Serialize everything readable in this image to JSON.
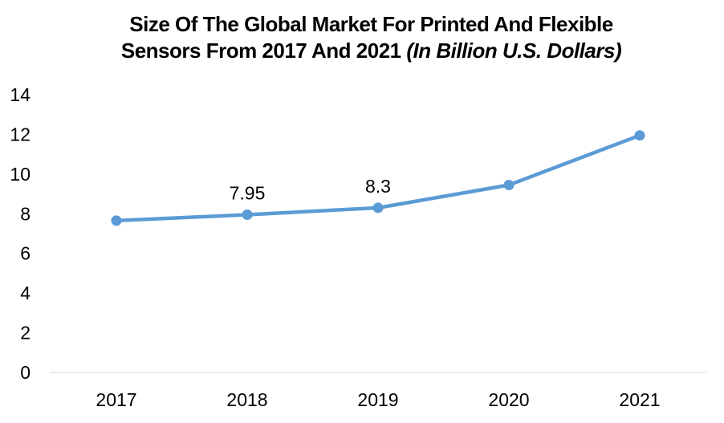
{
  "title": {
    "line1": "Size Of The Global Market For Printed And Flexible",
    "line2_main": "Sensors From 2017 And 2021 ",
    "line2_italic": "(In Billion U.S. Dollars)"
  },
  "chart_data": {
    "type": "line",
    "title": "Size Of The Global Market For Printed And Flexible Sensors From 2017 And 2021 (In Billion U.S. Dollars)",
    "categories": [
      "2017",
      "2018",
      "2019",
      "2020",
      "2021"
    ],
    "values": [
      7.65,
      7.95,
      8.3,
      9.45,
      11.95
    ],
    "point_labels": [
      "",
      "7.95",
      "8.3",
      "",
      ""
    ],
    "xlabel": "",
    "ylabel": "",
    "ylim": [
      0,
      14
    ],
    "yticks": [
      0,
      2,
      4,
      6,
      8,
      10,
      12,
      14
    ],
    "ytick_labels": [
      "0",
      "2",
      "4",
      "6",
      "8",
      "10",
      "12",
      "14"
    ],
    "grid": false,
    "legend": "none",
    "line_color": "#5B9BD5",
    "marker_color": "#5B9BD5",
    "axis_line_color": "#D9D9D9",
    "text_color": "#000000"
  }
}
